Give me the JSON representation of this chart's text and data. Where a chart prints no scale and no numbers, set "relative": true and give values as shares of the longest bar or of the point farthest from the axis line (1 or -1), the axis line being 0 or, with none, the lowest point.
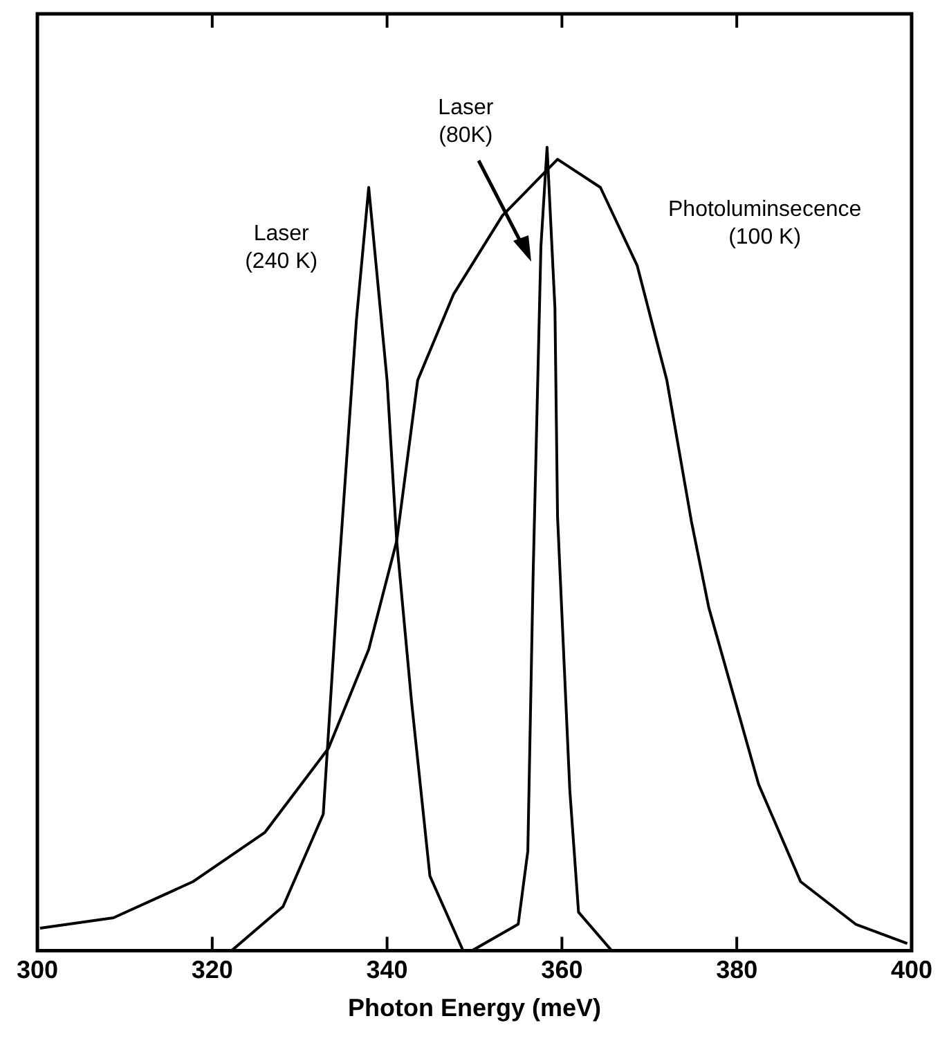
{
  "chart_data": {
    "type": "line",
    "xlabel": "Photon Energy (meV)",
    "relative": true,
    "xlim": [
      300,
      400
    ],
    "xticks": [
      300,
      320,
      340,
      360,
      380,
      400
    ],
    "tick_labels": "x",
    "legend": false,
    "marker": "none",
    "line_style": "solid",
    "grid": false,
    "series": [
      {
        "name": "Laser (240 K)",
        "color": "#000000",
        "x": [
          322.2,
          328.1,
          332.7,
          334.4,
          336.5,
          337.9,
          340,
          341.1,
          342.8,
          344.9,
          348.7
        ],
        "values": [
          0,
          0.055,
          0.17,
          0.46,
          0.786,
          0.95,
          0.71,
          0.51,
          0.31,
          0.093,
          0
        ]
      },
      {
        "name": "Laser (80K)",
        "color": "#000000",
        "x": [
          349.7,
          355,
          356.1,
          356.7,
          357.6,
          358.3,
          359.2,
          359.5,
          360.9,
          361.9,
          365.7
        ],
        "values": [
          0,
          0.033,
          0.124,
          0.465,
          0.877,
          1,
          0.8,
          0.54,
          0.2,
          0.048,
          0
        ]
      },
      {
        "name": "Photoluminsecence (100 K)",
        "color": "#000000",
        "x": [
          300.3,
          308.7,
          317.8,
          326,
          333.3,
          337.9,
          341.1,
          343.5,
          347.6,
          353.2,
          359.5,
          364.4,
          368.6,
          372,
          374.8,
          376.8,
          382.5,
          387.3,
          393.6,
          399.5
        ],
        "values": [
          0.028,
          0.041,
          0.086,
          0.147,
          0.252,
          0.375,
          0.51,
          0.71,
          0.817,
          0.915,
          0.985,
          0.95,
          0.853,
          0.71,
          0.535,
          0.427,
          0.207,
          0.086,
          0.033,
          0.009
        ]
      }
    ]
  }
}
